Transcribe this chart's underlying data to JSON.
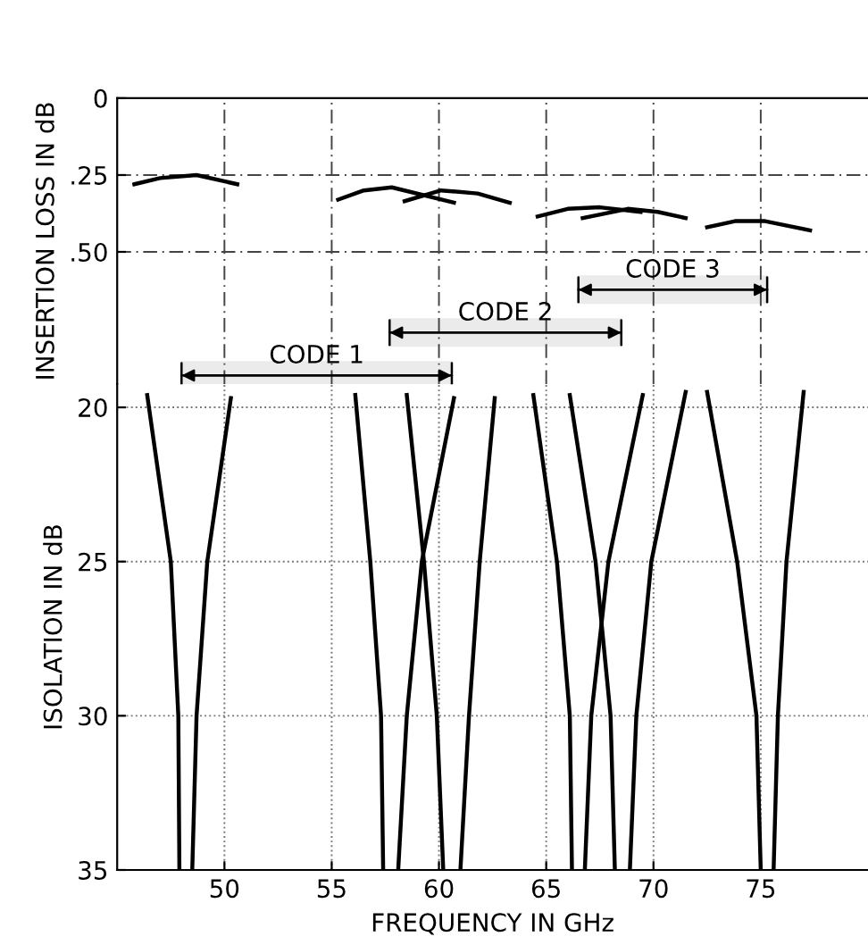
{
  "chart_data": [
    {
      "type": "line",
      "ylabel": "INSERTION LOSS IN dB",
      "xlim": [
        45,
        80
      ],
      "xticks": [
        50,
        55,
        60,
        65,
        70,
        75
      ],
      "ylim": [
        0.93,
        0
      ],
      "yticks": [
        0,
        {
          "value": 0.25,
          "label": ".25"
        },
        {
          "value": 0.5,
          "label": ".50"
        }
      ],
      "tick_labels": "y",
      "grid": true,
      "series": [
        {
          "color": "#000000",
          "x": [
            45.8,
            47,
            48.7,
            50.6
          ],
          "values": [
            0.28,
            0.26,
            0.25,
            0.28
          ]
        },
        {
          "color": "#000000",
          "x": [
            55.3,
            56.5,
            57.8,
            60.7
          ],
          "values": [
            0.33,
            0.3,
            0.29,
            0.34
          ]
        },
        {
          "color": "#000000",
          "x": [
            58.4,
            60.1,
            61.8,
            63.3
          ],
          "values": [
            0.335,
            0.3,
            0.31,
            0.34
          ]
        },
        {
          "color": "#000000",
          "x": [
            64.6,
            66,
            67.5,
            69.4
          ],
          "values": [
            0.385,
            0.36,
            0.355,
            0.37
          ]
        },
        {
          "color": "#000000",
          "x": [
            66.7,
            68.8,
            70.2,
            71.5
          ],
          "values": [
            0.39,
            0.36,
            0.37,
            0.39
          ]
        },
        {
          "color": "#000000",
          "x": [
            72.5,
            73.8,
            75.2,
            77.3
          ],
          "values": [
            0.42,
            0.4,
            0.4,
            0.43
          ]
        }
      ],
      "bands": [
        {
          "axis": "x",
          "from": 48.0,
          "to": 60.6,
          "label": "CODE 1",
          "color": "#000000"
        },
        {
          "axis": "x",
          "from": 57.7,
          "to": 68.5,
          "label": "CODE 2",
          "color": "#000000"
        },
        {
          "axis": "x",
          "from": 66.5,
          "to": 75.3,
          "label": "CODE 3",
          "color": "#000000"
        }
      ]
    },
    {
      "type": "line",
      "xlabel": "FREQUENCY IN GHz",
      "ylabel": "ISOLATION IN dB",
      "xlim": [
        45,
        80
      ],
      "xticks": [
        50,
        55,
        60,
        65,
        70,
        75
      ],
      "ylim": [
        35,
        19.25
      ],
      "yticks": [
        20,
        25,
        30,
        35
      ],
      "grid": true,
      "series": [
        {
          "color": "#000000",
          "x": [
            46.4,
            47.5,
            47.85,
            47.9
          ],
          "values": [
            19.6,
            25,
            30,
            35
          ]
        },
        {
          "color": "#000000",
          "x": [
            48.5,
            48.7,
            49.2,
            50.3
          ],
          "values": [
            35,
            30,
            25,
            19.7
          ]
        },
        {
          "color": "#000000",
          "x": [
            56.1,
            56.8,
            57.3,
            57.4
          ],
          "values": [
            19.6,
            25,
            30,
            35
          ]
        },
        {
          "color": "#000000",
          "x": [
            58.5,
            59.3,
            59.9,
            60.2
          ],
          "values": [
            19.6,
            25,
            30,
            35
          ]
        },
        {
          "color": "#000000",
          "x": [
            58.1,
            58.5,
            59.2,
            60.7
          ],
          "values": [
            35,
            30,
            25,
            19.7
          ]
        },
        {
          "color": "#000000",
          "x": [
            61.0,
            61.4,
            61.9,
            62.6
          ],
          "values": [
            35,
            30,
            25,
            19.7
          ]
        },
        {
          "color": "#000000",
          "x": [
            64.4,
            65.5,
            66.1,
            66.2
          ],
          "values": [
            19.6,
            25,
            30,
            35
          ]
        },
        {
          "color": "#000000",
          "x": [
            66.1,
            67.3,
            68.0,
            68.2
          ],
          "values": [
            19.6,
            25,
            30,
            35
          ]
        },
        {
          "color": "#000000",
          "x": [
            66.8,
            67.1,
            67.9,
            69.5
          ],
          "values": [
            35,
            30,
            25,
            19.6
          ]
        },
        {
          "color": "#000000",
          "x": [
            68.9,
            69.2,
            69.9,
            71.5
          ],
          "values": [
            35,
            30,
            25,
            19.5
          ]
        },
        {
          "color": "#000000",
          "x": [
            72.5,
            73.9,
            74.8,
            75.0
          ],
          "values": [
            19.5,
            25,
            30,
            35
          ]
        },
        {
          "color": "#000000",
          "x": [
            75.6,
            75.8,
            76.2,
            77.0
          ],
          "values": [
            35,
            30,
            25,
            19.5
          ]
        }
      ]
    }
  ]
}
